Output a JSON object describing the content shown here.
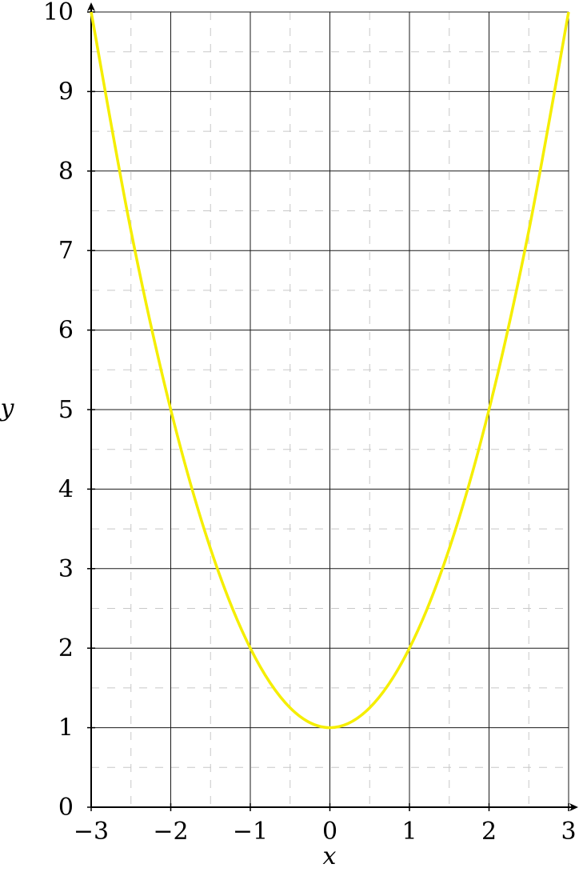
{
  "chart_data": {
    "type": "line",
    "title": "",
    "xlabel": "x",
    "ylabel": "y",
    "xlim": [
      -3,
      3
    ],
    "ylim": [
      0,
      10
    ],
    "x_ticks": [
      -3,
      -2,
      -1,
      0,
      1,
      2,
      3
    ],
    "x_tick_labels": [
      "−3",
      "−2",
      "−1",
      "0",
      "1",
      "2",
      "3"
    ],
    "y_ticks": [
      0,
      1,
      2,
      3,
      4,
      5,
      6,
      7,
      8,
      9,
      10
    ],
    "y_tick_labels": [
      "0",
      "1",
      "2",
      "3",
      "4",
      "5",
      "6",
      "7",
      "8",
      "9",
      "10"
    ],
    "grid": {
      "major": true,
      "minor": true,
      "minor_style": "dashed"
    },
    "series": [
      {
        "color": "#f5ee00",
        "x": [
          -3,
          -2.5,
          -2,
          -1.5,
          -1,
          -0.5,
          0,
          0.5,
          1,
          1.5,
          2,
          2.5,
          3
        ],
        "y": [
          10,
          7.25,
          5,
          3.25,
          2,
          1.25,
          1,
          1.25,
          2,
          3.25,
          5,
          7.25,
          10
        ]
      }
    ]
  }
}
